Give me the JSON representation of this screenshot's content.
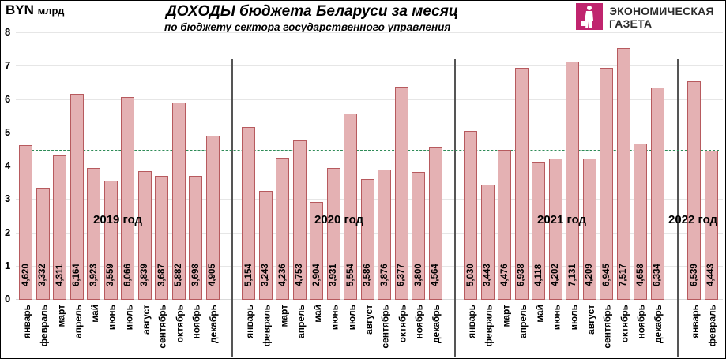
{
  "header": {
    "unit": "BYN",
    "unit_suffix": "млрд",
    "title": "ДОХОДЫ бюджета Беларуси за месяц",
    "subtitle": "по бюджету сектора государственного управления"
  },
  "logo": {
    "line1": "ЭКОНОМИЧЕСКАЯ",
    "line2": "ГАЗЕТА",
    "color": "#c0246e"
  },
  "colors": {
    "bar_fill": "#e4b1b3",
    "bar_border": "#b75a5e",
    "avg_line": "#2e8b57",
    "separator": "#555555"
  },
  "chart_data": {
    "type": "bar",
    "title": "ДОХОДЫ бюджета Беларуси за месяц",
    "subtitle": "по бюджету сектора государственного управления",
    "ylabel": "BYN млрд",
    "xlabel": "",
    "ylim": [
      0,
      8
    ],
    "yticks": [
      0,
      1,
      2,
      3,
      4,
      5,
      6,
      7,
      8
    ],
    "grid": true,
    "legend": null,
    "reference_line": {
      "style": "dashed",
      "color": "#2e8b57",
      "value": 4.47
    },
    "groups": [
      {
        "name": "2019 год",
        "categories": [
          "январь",
          "февраль",
          "март",
          "апрель",
          "май",
          "июнь",
          "июль",
          "август",
          "сентябрь",
          "октябрь",
          "ноябрь",
          "декабрь"
        ],
        "values": [
          4.62,
          3.332,
          4.311,
          6.164,
          3.923,
          3.559,
          6.066,
          3.839,
          3.687,
          5.882,
          3.698,
          4.905
        ],
        "labels": [
          "4,620",
          "3,332",
          "4,311",
          "6,164",
          "3,923",
          "3,559",
          "6,066",
          "3,839",
          "3,687",
          "5,882",
          "3,698",
          "4,905"
        ]
      },
      {
        "name": "2020 год",
        "categories": [
          "январь",
          "февраль",
          "март",
          "апрель",
          "май",
          "июнь",
          "июль",
          "август",
          "сентябрь",
          "октябрь",
          "ноябрь",
          "декабрь"
        ],
        "values": [
          5.154,
          3.243,
          4.236,
          4.753,
          2.904,
          3.931,
          5.554,
          3.586,
          3.876,
          6.377,
          3.8,
          4.564
        ],
        "labels": [
          "5,154",
          "3,243",
          "4,236",
          "4,753",
          "2,904",
          "3,931",
          "5,554",
          "3,586",
          "3,876",
          "6,377",
          "3,800",
          "4,564"
        ]
      },
      {
        "name": "2021 год",
        "categories": [
          "январь",
          "февраль",
          "март",
          "апрель",
          "май",
          "июнь",
          "июль",
          "август",
          "сентябрь",
          "октябрь",
          "ноябрь",
          "декабрь"
        ],
        "values": [
          5.03,
          3.443,
          4.476,
          6.938,
          4.118,
          4.202,
          7.131,
          4.209,
          6.945,
          7.517,
          4.658,
          6.334
        ],
        "labels": [
          "5,030",
          "3,443",
          "4,476",
          "6,938",
          "4,118",
          "4,202",
          "7,131",
          "4,209",
          "6,945",
          "7,517",
          "4,658",
          "6,334"
        ]
      },
      {
        "name": "2022 год",
        "categories": [
          "январь",
          "февраль"
        ],
        "values": [
          6.539,
          4.443
        ],
        "labels": [
          "6,539",
          "4,443"
        ]
      }
    ]
  }
}
